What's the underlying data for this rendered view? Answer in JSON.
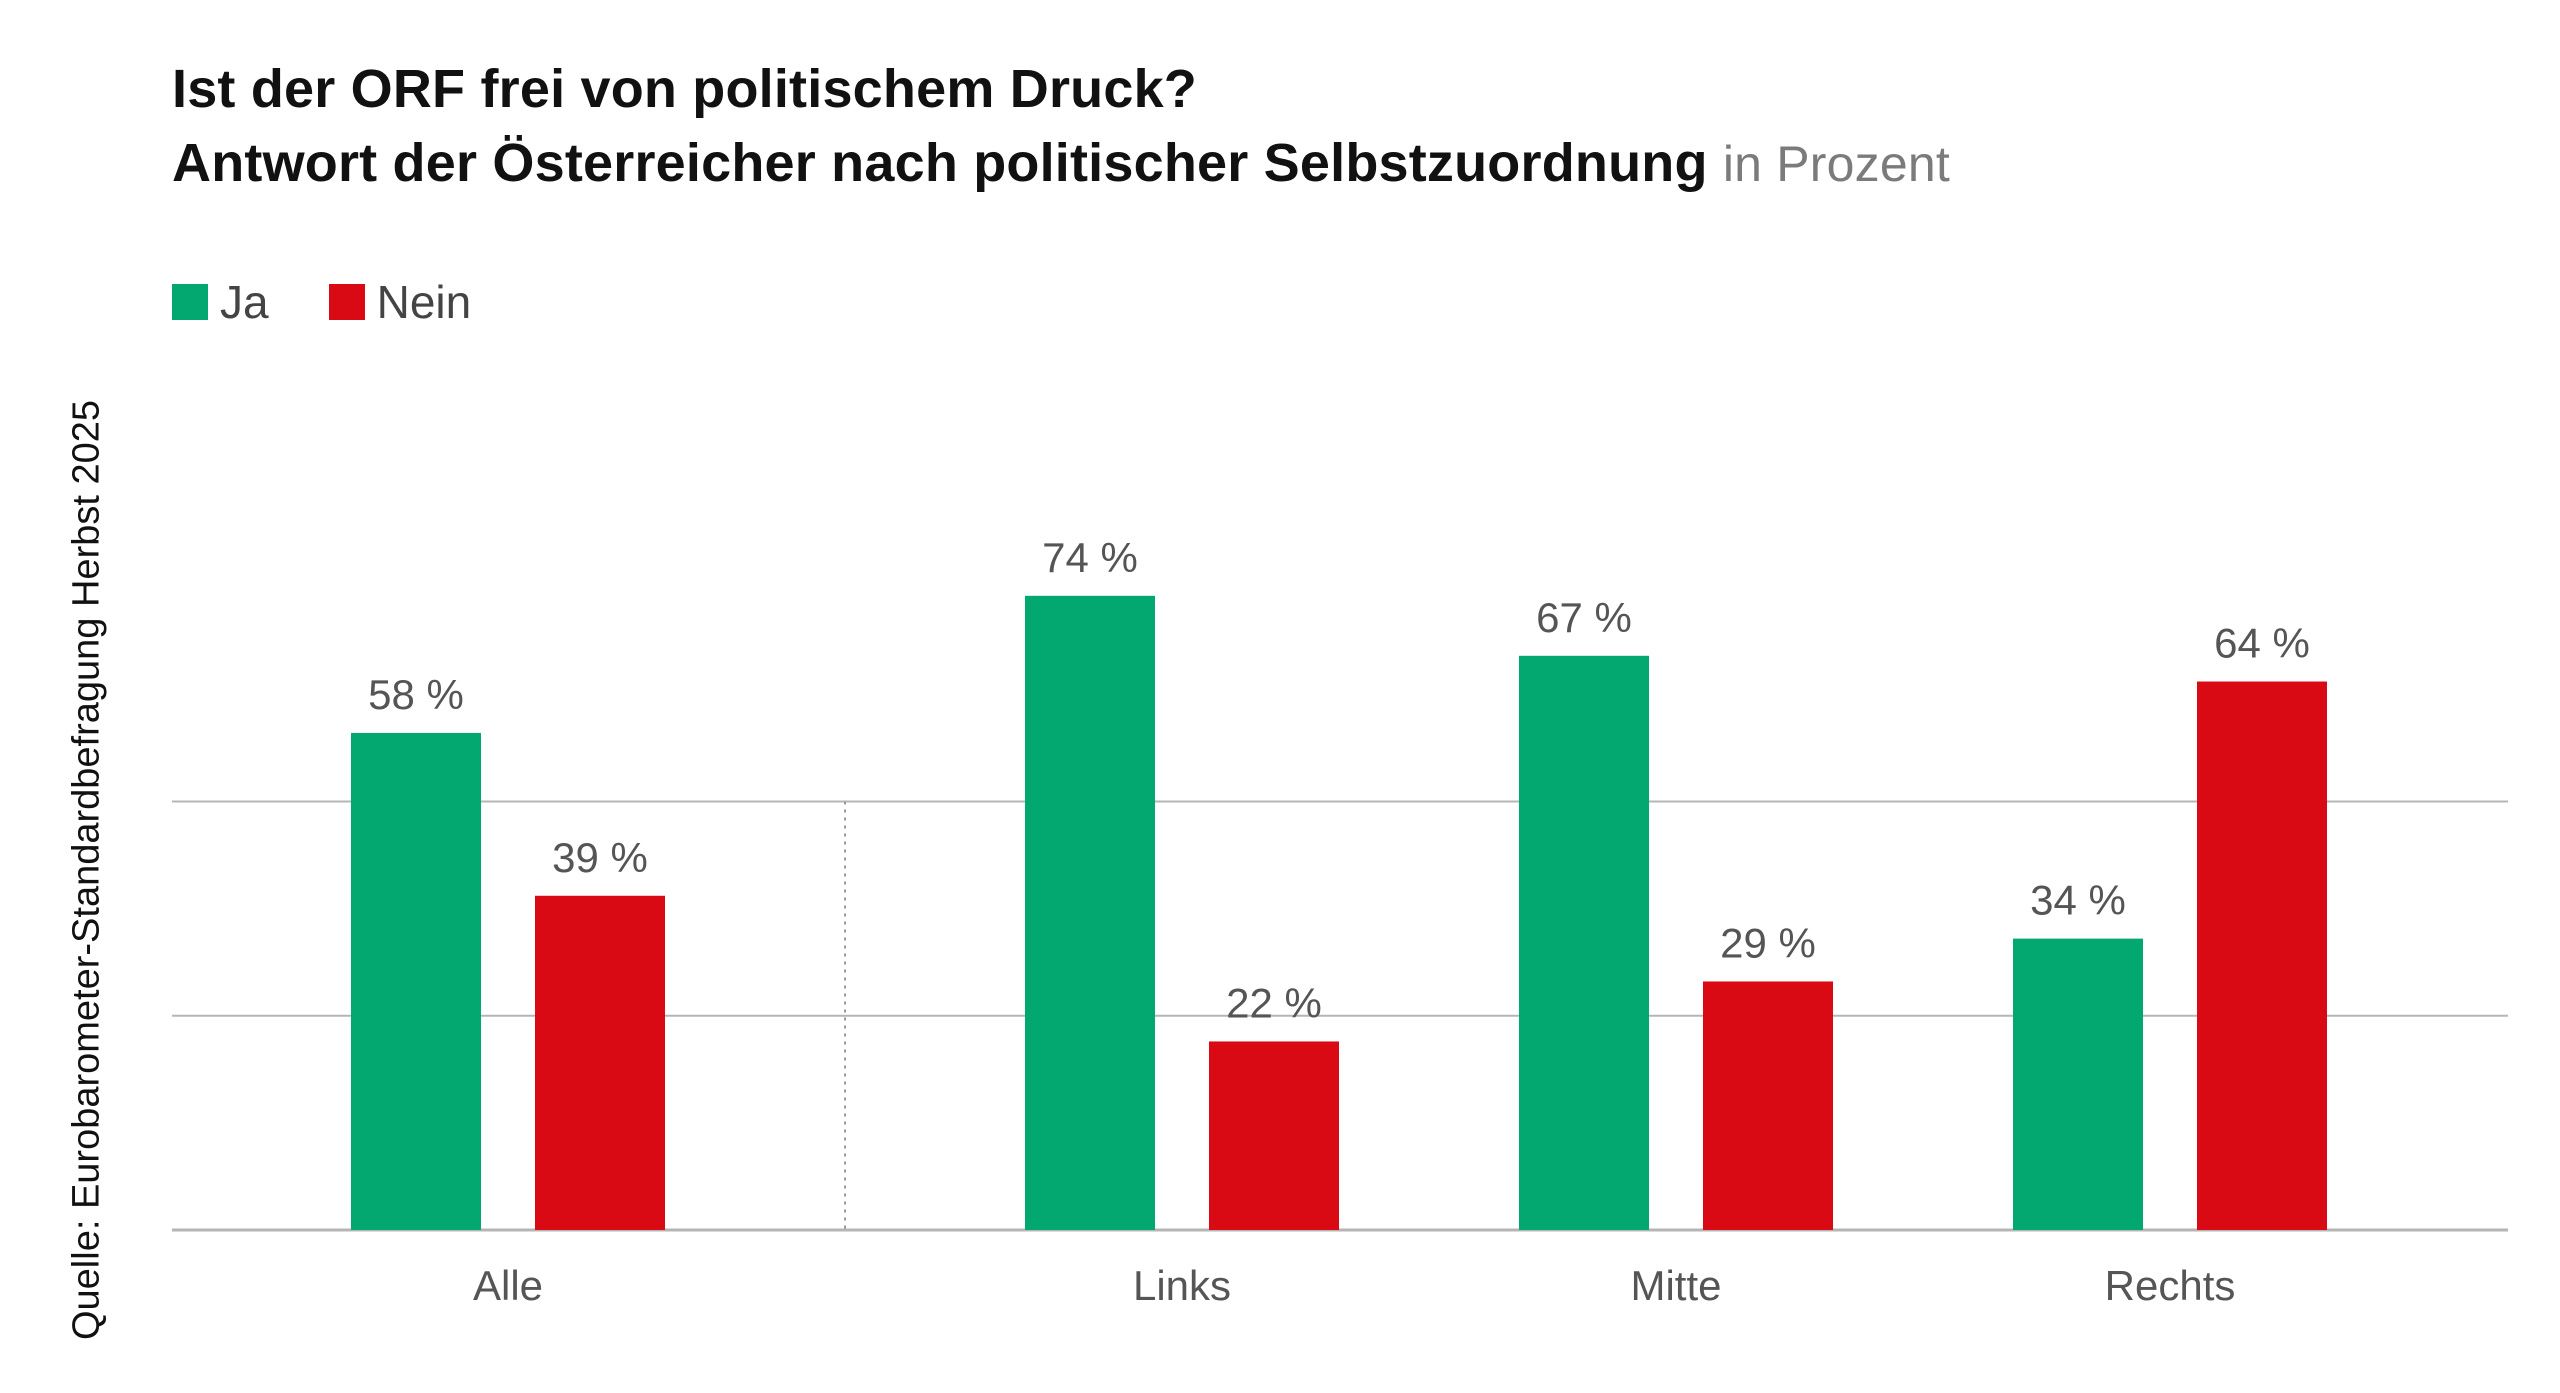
{
  "title": {
    "line1": "Ist der ORF frei von politischem Druck?",
    "line2": "Antwort der Österreicher nach politischer Selbstzuordnung",
    "unit": "in Prozent"
  },
  "source": "Quelle: Eurobarometer-Standardbefragung Herbst 2025",
  "colors": {
    "ja": "#02a86f",
    "nein": "#da0a14",
    "grid": "#b5b5b5",
    "separator": "#9a9a9a"
  },
  "chart_data": {
    "type": "bar",
    "categories": [
      "Alle",
      "Links",
      "Mitte",
      "Rechts"
    ],
    "series": [
      {
        "name": "Ja",
        "values": [
          58,
          74,
          67,
          34
        ],
        "labels": [
          "58 %",
          "74 %",
          "67 %",
          "34 %"
        ]
      },
      {
        "name": "Nein",
        "values": [
          39,
          22,
          29,
          64
        ],
        "labels": [
          "39 %",
          "22 %",
          "29 %",
          "64 %"
        ]
      }
    ],
    "ylim": [
      0,
      80
    ],
    "legend": "top-left",
    "grid": true
  }
}
